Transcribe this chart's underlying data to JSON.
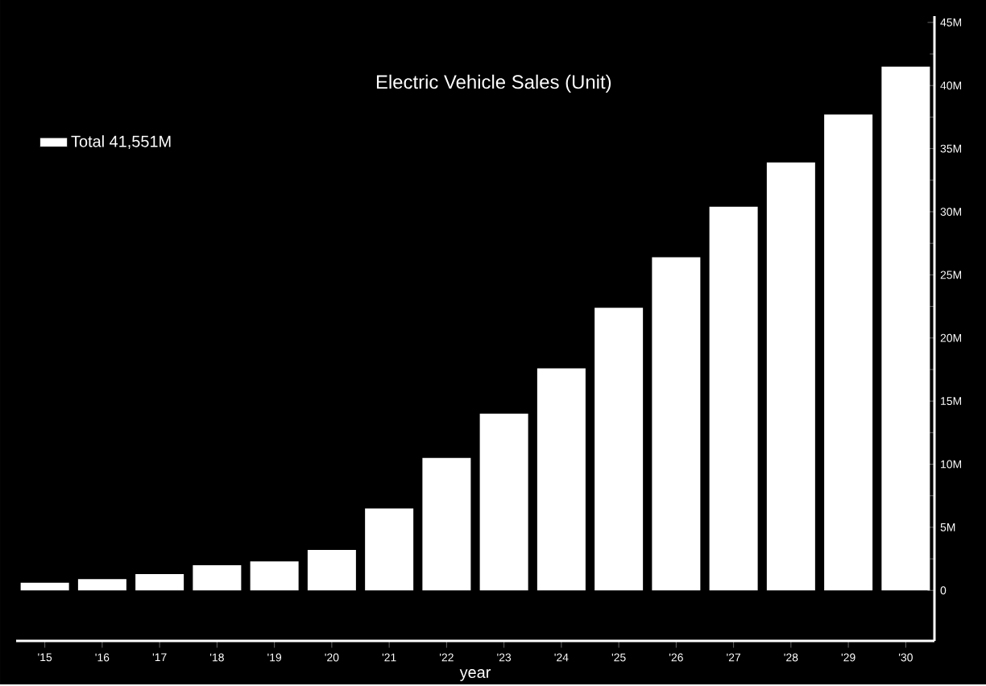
{
  "chart_data": {
    "type": "bar",
    "title": "Electric Vehicle Sales (Unit)",
    "xlabel": "year",
    "categories": [
      "'15",
      "'16",
      "'17",
      "'18",
      "'19",
      "'20",
      "'21",
      "'22",
      "'23",
      "'24",
      "'25",
      "'26",
      "'27",
      "'28",
      "'29",
      "'30"
    ],
    "series": [
      {
        "name": "Total 41,551M",
        "color": "#ffffff",
        "values": [
          0.6,
          0.9,
          1.3,
          2.0,
          2.3,
          3.2,
          6.5,
          10.5,
          14.0,
          17.6,
          22.4,
          26.4,
          30.4,
          33.9,
          37.7,
          41.5
        ]
      }
    ],
    "ylim": [
      -4,
      45.5
    ],
    "yticks": [
      0,
      {
        "value": 5,
        "label": "5M"
      },
      {
        "value": 10,
        "label": "10M"
      },
      {
        "value": 15,
        "label": "15M"
      },
      {
        "value": 20,
        "label": "20M"
      },
      {
        "value": 25,
        "label": "25M"
      },
      {
        "value": 30,
        "label": "30M"
      },
      {
        "value": 35,
        "label": "35M"
      },
      {
        "value": 40,
        "label": "40M"
      },
      {
        "value": 45,
        "label": "45M"
      }
    ],
    "legend": "top left",
    "grid": false
  }
}
